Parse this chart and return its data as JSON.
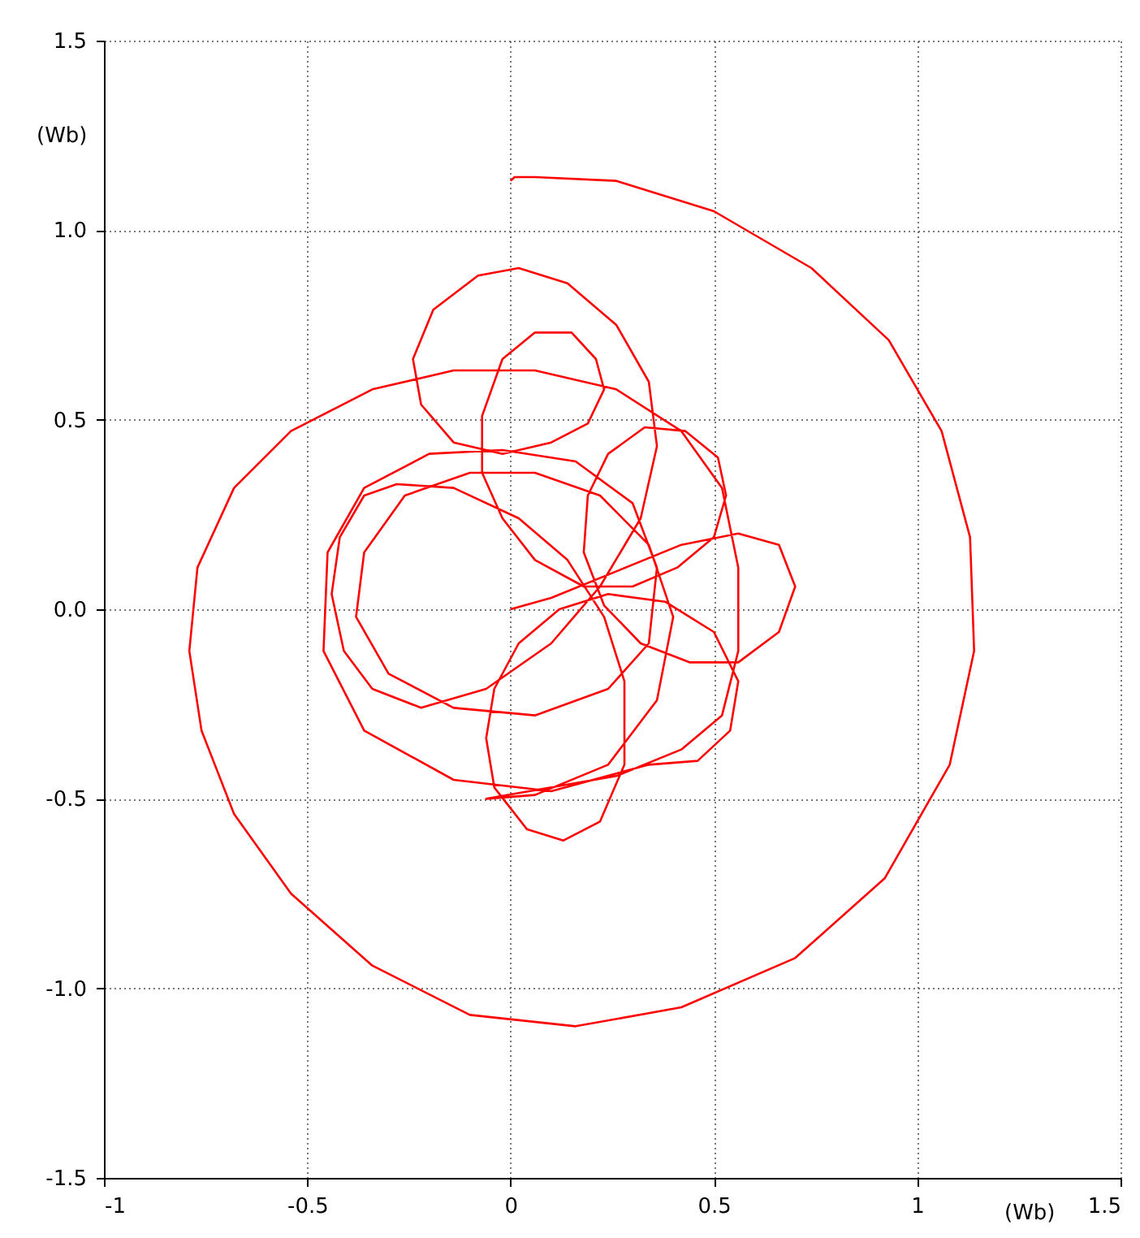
{
  "chart_data": {
    "type": "line",
    "xlabel": "(Wb)",
    "ylabel": "(Wb)",
    "xlim": [
      -1,
      1.5
    ],
    "ylim": [
      -1.5,
      1.5
    ],
    "xticks": [
      -1,
      -0.5,
      0,
      0.5,
      1,
      1.5
    ],
    "yticks": [
      {
        "value": -1.5,
        "label": "-1.5"
      },
      {
        "value": -1,
        "label": "-1.0"
      },
      {
        "value": -0.5,
        "label": "-0.5"
      },
      {
        "value": 0,
        "label": "0.0"
      },
      {
        "value": 0.5,
        "label": "0.5"
      },
      {
        "value": 1,
        "label": "1.0"
      },
      {
        "value": 1.5,
        "label": "1.5"
      }
    ],
    "grid": true,
    "series": [
      {
        "color": "#ff0000",
        "x": [
          0,
          0.1,
          0.26,
          0.42,
          0.56,
          0.66,
          0.7,
          0.66,
          0.56,
          0.44,
          0.32,
          0.23,
          0.18,
          0.19,
          0.24,
          0.33,
          0.43,
          0.51,
          0.53,
          0.5,
          0.41,
          0.3,
          0.18,
          0.06,
          -0.02,
          -0.07,
          -0.07,
          -0.02,
          0.06,
          0.15,
          0.21,
          0.23,
          0.19,
          0.1,
          -0.02,
          -0.14,
          -0.22,
          -0.24,
          -0.19,
          -0.08,
          0.02,
          0.14,
          0.26,
          0.34,
          0.36,
          0.32,
          0.22,
          0.1,
          -0.06,
          -0.22,
          -0.34,
          -0.41,
          -0.44,
          -0.42,
          -0.36,
          -0.28,
          -0.14,
          0.02,
          0.14,
          0.23,
          0.28,
          0.28,
          0.22,
          0.13,
          0.04,
          -0.04,
          -0.06,
          -0.04,
          0.02,
          0.12,
          0.24,
          0.38,
          0.5,
          0.56,
          0.54,
          0.46,
          0.34,
          0.1,
          -0.14,
          -0.36,
          -0.46,
          -0.45,
          -0.36,
          -0.2,
          -0.02,
          0.16,
          0.3,
          0.36,
          0.34,
          0.24,
          0.06,
          -0.14,
          -0.3,
          -0.38,
          -0.36,
          -0.26,
          -0.1,
          0.06,
          0.22,
          0.34,
          0.4,
          0.36,
          0.24,
          0.06,
          -0.06,
          0.26,
          0.42,
          0.52,
          0.56,
          0.56,
          0.52,
          0.42,
          0.26,
          0.06,
          -0.14,
          -0.34,
          -0.54,
          -0.68,
          -0.77,
          -0.79,
          -0.76,
          -0.68,
          -0.54,
          -0.34,
          -0.1,
          0.16,
          0.42,
          0.7,
          0.92,
          1.08,
          1.14,
          1.13,
          1.06,
          0.93,
          0.74,
          0.5,
          0.26,
          0.06,
          0.01,
          0.0
        ],
        "values": [
          0,
          0.03,
          0.1,
          0.17,
          0.2,
          0.17,
          0.06,
          -0.06,
          -0.14,
          -0.14,
          -0.09,
          0.01,
          0.15,
          0.3,
          0.41,
          0.48,
          0.47,
          0.4,
          0.3,
          0.19,
          0.11,
          0.06,
          0.06,
          0.13,
          0.24,
          0.36,
          0.51,
          0.66,
          0.73,
          0.73,
          0.66,
          0.58,
          0.49,
          0.44,
          0.41,
          0.44,
          0.54,
          0.66,
          0.79,
          0.88,
          0.9,
          0.86,
          0.75,
          0.6,
          0.43,
          0.24,
          0.06,
          -0.09,
          -0.21,
          -0.26,
          -0.21,
          -0.11,
          0.04,
          0.19,
          0.3,
          0.33,
          0.32,
          0.24,
          0.13,
          -0.02,
          -0.19,
          -0.41,
          -0.56,
          -0.61,
          -0.58,
          -0.47,
          -0.34,
          -0.21,
          -0.09,
          0.0,
          0.04,
          0.02,
          -0.06,
          -0.19,
          -0.32,
          -0.4,
          -0.41,
          -0.48,
          -0.45,
          -0.32,
          -0.11,
          0.15,
          0.32,
          0.41,
          0.42,
          0.39,
          0.28,
          0.11,
          -0.09,
          -0.21,
          -0.28,
          -0.26,
          -0.17,
          -0.02,
          0.15,
          0.3,
          0.36,
          0.36,
          0.3,
          0.17,
          -0.02,
          -0.24,
          -0.41,
          -0.49,
          -0.5,
          -0.44,
          -0.37,
          -0.28,
          -0.11,
          0.11,
          0.32,
          0.47,
          0.58,
          0.63,
          0.63,
          0.58,
          0.47,
          0.32,
          0.11,
          -0.11,
          -0.32,
          -0.54,
          -0.75,
          -0.94,
          -1.07,
          -1.1,
          -1.05,
          -0.92,
          -0.71,
          -0.41,
          -0.11,
          0.19,
          0.47,
          0.71,
          0.9,
          1.05,
          1.13,
          1.14,
          1.14,
          1.13
        ]
      }
    ]
  }
}
